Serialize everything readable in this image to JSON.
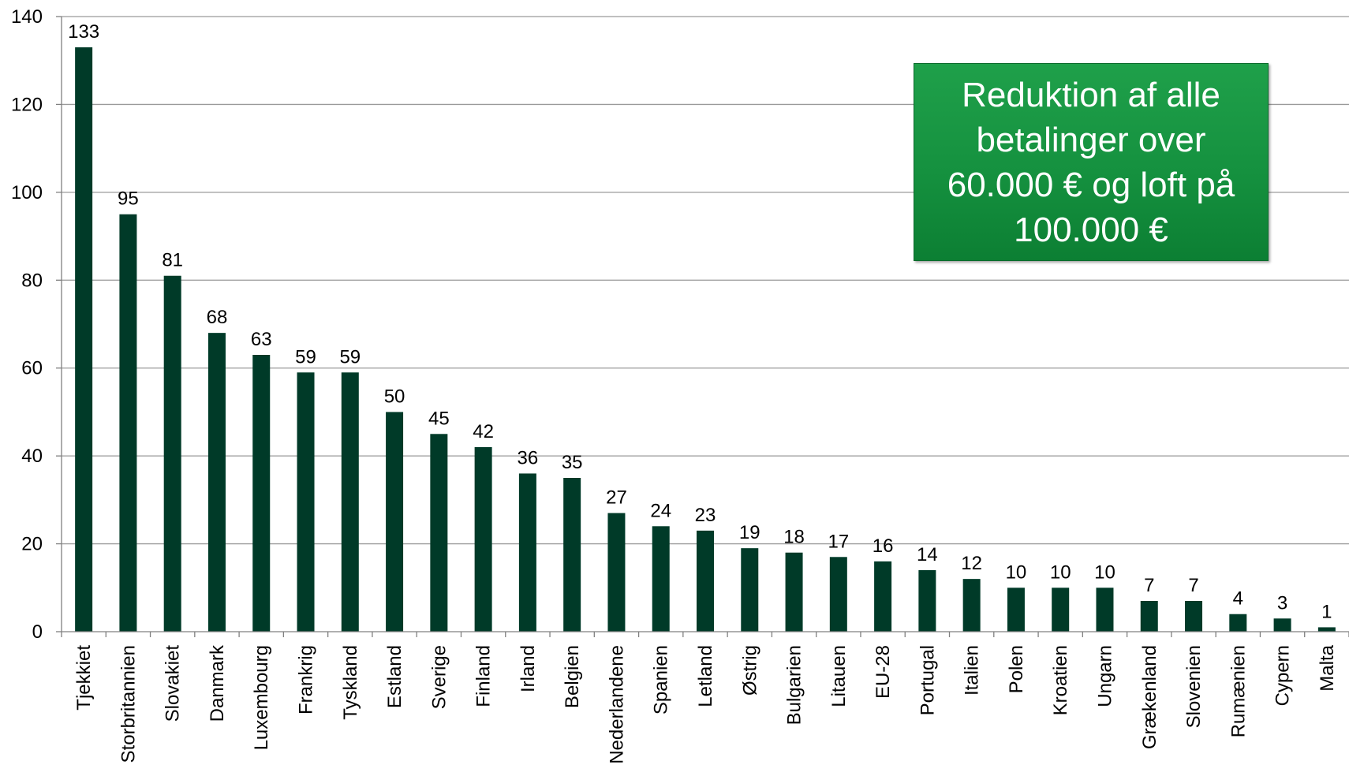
{
  "chart_data": {
    "type": "bar",
    "title": "",
    "xlabel": "",
    "ylabel": "",
    "ylim": [
      0,
      140
    ],
    "yticks": [
      0,
      20,
      40,
      60,
      80,
      100,
      120,
      140
    ],
    "grid": true,
    "legend": "none",
    "categories": [
      "Tjekkiet",
      "Storbritannien",
      "Slovakiet",
      "Danmark",
      "Luxembourg",
      "Frankrig",
      "Tyskland",
      "Estland",
      "Sverige",
      "Finland",
      "Irland",
      "Belgien",
      "Nederlandene",
      "Spanien",
      "Letland",
      "Østrig",
      "Bulgarien",
      "Litauen",
      "EU-28",
      "Portugal",
      "Italien",
      "Polen",
      "Kroatien",
      "Ungarn",
      "Grækenland",
      "Slovenien",
      "Rumænien",
      "Cypern",
      "Malta"
    ],
    "values": [
      133,
      95,
      81,
      68,
      63,
      59,
      59,
      50,
      45,
      42,
      36,
      35,
      27,
      24,
      23,
      19,
      18,
      17,
      16,
      14,
      12,
      10,
      10,
      10,
      7,
      7,
      4,
      3,
      1
    ],
    "bar_color": "#003a28",
    "annotation": "Reduktion af alle betalinger over 60.000 € og loft på 100.000 €",
    "annotation_color": "#1a9a46"
  }
}
